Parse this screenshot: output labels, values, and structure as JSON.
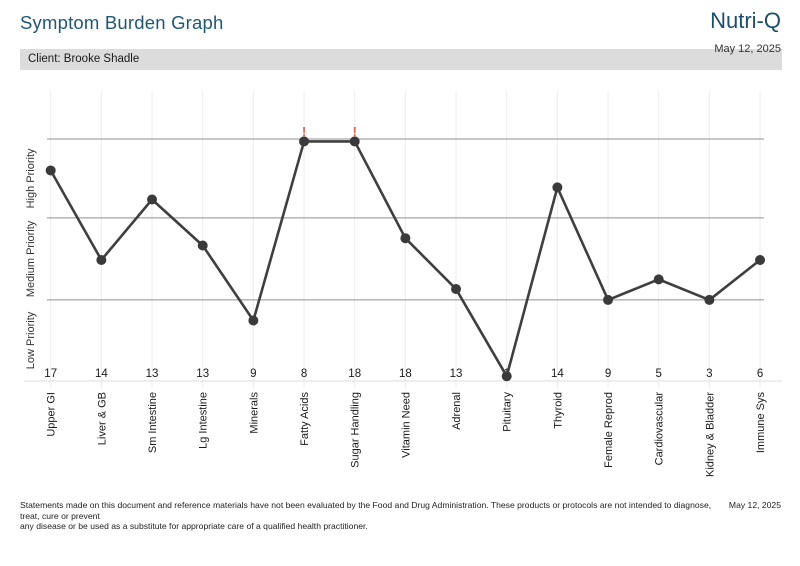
{
  "header": {
    "title": "Symptom Burden Graph",
    "brand": "Nutri-Q",
    "client": "Client: Brooke Shadle",
    "date": "May 12, 2025"
  },
  "footer": {
    "disclaimer_line1": "Statements made on this document and reference materials have not been evaluated by the Food and Drug Administration. These products or protocols are not intended to diagnose, treat, cure or prevent",
    "disclaimer_line2": "any disease or be used as a substitute for appropriate care of a qualified health practitioner.",
    "date": "May 12, 2025"
  },
  "colors": {
    "accent_blue": "#1d5876",
    "line": "#3f3f3f",
    "point": "#3a3a3a",
    "grid_dark": "#8f8f8f",
    "grid_light": "#ececec",
    "axis_light": "#dcdcdc",
    "client_bar_bg": "#dcdcdc",
    "alert_red": "#dc5f49",
    "text": "#1a1a1a"
  },
  "chart_data": {
    "type": "line",
    "title": "Symptom Burden Graph",
    "ylabel": "Priority",
    "flag_symbol": "!",
    "grid": "on",
    "zones": [
      {
        "label": "Low Priority",
        "from_pct": 0,
        "to_pct": 33.5
      },
      {
        "label": "Medium Priority",
        "from_pct": 33.5,
        "to_pct": 67.4
      },
      {
        "label": "High Priority",
        "from_pct": 67.4,
        "to_pct": 100
      }
    ],
    "points": [
      {
        "label": "Upper GI",
        "total": 17,
        "level_pct": 87,
        "flag": false
      },
      {
        "label": "Liver & GB",
        "total": 14,
        "level_pct": 50,
        "flag": false
      },
      {
        "label": "Sm Intestine",
        "total": 13,
        "level_pct": 75,
        "flag": false
      },
      {
        "label": "Lg Intestine",
        "total": 13,
        "level_pct": 56,
        "flag": false
      },
      {
        "label": "Minerals",
        "total": 9,
        "level_pct": 25,
        "flag": false
      },
      {
        "label": "Fatty Acids",
        "total": 8,
        "level_pct": 99,
        "flag": true
      },
      {
        "label": "Sugar Handling",
        "total": 18,
        "level_pct": 99,
        "flag": true
      },
      {
        "label": "Vitamin Need",
        "total": 18,
        "level_pct": 59,
        "flag": false
      },
      {
        "label": "Adrenal",
        "total": 13,
        "level_pct": 38,
        "flag": false
      },
      {
        "label": "Pituitary",
        "total": 1,
        "level_pct": 2,
        "flag": false
      },
      {
        "label": "Thyroid",
        "total": 14,
        "level_pct": 80,
        "flag": false
      },
      {
        "label": "Female Reprod",
        "total": 9,
        "level_pct": 33.5,
        "flag": false
      },
      {
        "label": "Cardiovascular",
        "total": 5,
        "level_pct": 42,
        "flag": false
      },
      {
        "label": "Kidney & Bladder",
        "total": 3,
        "level_pct": 33.5,
        "flag": false
      },
      {
        "label": "Immune Sys",
        "total": 6,
        "level_pct": 50,
        "flag": false
      }
    ]
  }
}
